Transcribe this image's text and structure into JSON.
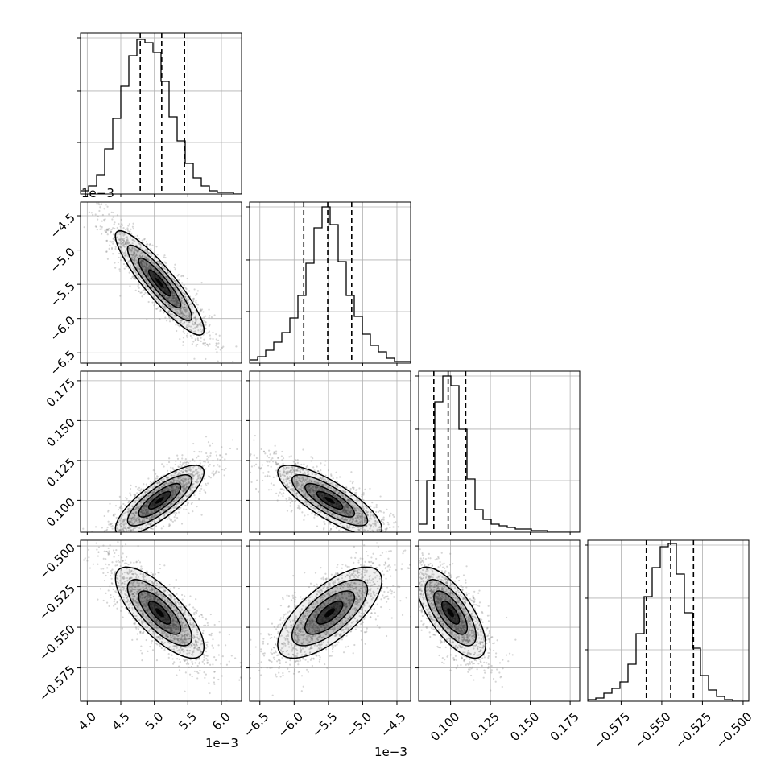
{
  "chart_data": {
    "type": "corner",
    "parameters": 4,
    "grid": true,
    "colors": {
      "line": "#000000",
      "grid": "#b0b0b0",
      "points": "#888888",
      "fill": "#000000"
    },
    "axes": [
      {
        "range": [
          3.9,
          6.3
        ],
        "ticks": [
          "4.0",
          "4.5",
          "5.0",
          "5.5",
          "6.0"
        ],
        "tick_values": [
          4.0,
          4.5,
          5.0,
          5.5,
          6.0
        ],
        "offset_label": "1e−3"
      },
      {
        "range": [
          -6.65,
          -4.3
        ],
        "ticks": [
          "−6.5",
          "−6.0",
          "−5.5",
          "−5.0",
          "−4.5"
        ],
        "tick_values": [
          -6.5,
          -6.0,
          -5.5,
          -5.0,
          -4.5
        ],
        "offset_label": "1e−3"
      },
      {
        "range": [
          0.08,
          0.181
        ],
        "ticks": [
          "0.100",
          "0.125",
          "0.150",
          "0.175"
        ],
        "tick_values": [
          0.1,
          0.125,
          0.15,
          0.175
        ],
        "offset_label": ""
      },
      {
        "range": [
          -0.5955,
          -0.4965
        ],
        "ticks": [
          "−0.575",
          "−0.550",
          "−0.525",
          "−0.500"
        ],
        "tick_values": [
          -0.575,
          -0.55,
          -0.525,
          -0.5
        ],
        "offset_label": ""
      }
    ],
    "histograms": [
      {
        "edges_start": 3.9,
        "bin_width": 0.12,
        "counts": [
          0.02,
          0.05,
          0.12,
          0.28,
          0.47,
          0.67,
          0.86,
          0.96,
          0.94,
          0.88,
          0.7,
          0.48,
          0.33,
          0.19,
          0.1,
          0.05,
          0.02,
          0.01,
          0.01,
          0.0
        ],
        "quantiles": [
          4.79,
          5.11,
          5.45
        ]
      },
      {
        "edges_start": -6.65,
        "bin_width": 0.1175,
        "counts": [
          0.02,
          0.04,
          0.08,
          0.13,
          0.19,
          0.28,
          0.42,
          0.62,
          0.84,
          0.97,
          0.86,
          0.63,
          0.42,
          0.29,
          0.18,
          0.11,
          0.07,
          0.03,
          0.01,
          0.01
        ],
        "quantiles": [
          -5.86,
          -5.51,
          -5.16
        ]
      },
      {
        "edges_start": 0.08,
        "bin_width": 0.00505,
        "counts": [
          0.05,
          0.32,
          0.81,
          0.97,
          0.91,
          0.64,
          0.33,
          0.14,
          0.08,
          0.05,
          0.04,
          0.03,
          0.02,
          0.02,
          0.01,
          0.01,
          0.0,
          0.0,
          0.0,
          0.0
        ],
        "quantiles": [
          0.0895,
          0.0985,
          0.1095
        ]
      },
      {
        "edges_start": -0.5955,
        "bin_width": 0.00495,
        "counts": [
          0.01,
          0.02,
          0.05,
          0.08,
          0.12,
          0.23,
          0.42,
          0.65,
          0.83,
          0.96,
          0.98,
          0.79,
          0.55,
          0.33,
          0.16,
          0.07,
          0.03,
          0.01,
          0.0,
          0.0
        ],
        "quantiles": [
          -0.5595,
          -0.5445,
          -0.5305
        ]
      }
    ],
    "correlations": [
      [
        1.0,
        -0.9,
        0.8,
        -0.75
      ],
      [
        -0.9,
        1.0,
        -0.8,
        0.7
      ],
      [
        0.8,
        -0.8,
        1.0,
        -0.7
      ],
      [
        -0.75,
        0.7,
        -0.7,
        1.0
      ]
    ],
    "means": [
      5.08,
      -5.48,
      0.1,
      -0.541
    ],
    "stds": [
      0.33,
      0.38,
      0.011,
      0.014
    ]
  }
}
